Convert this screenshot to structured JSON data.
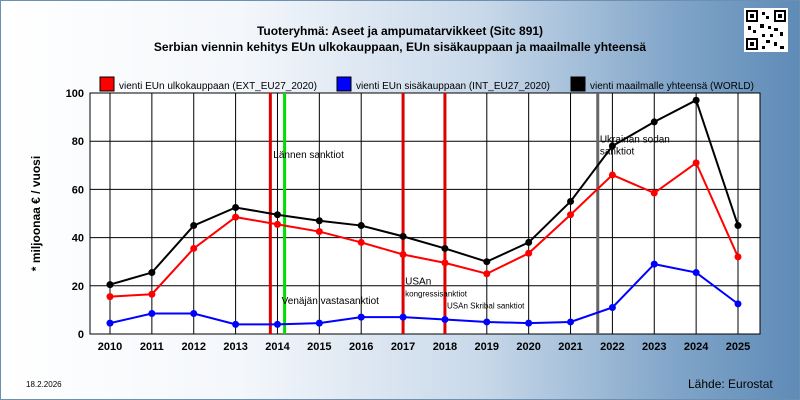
{
  "title": "Tuoteryhmä: Aseet ja ampumatarvikkeet (Sitc 891)",
  "subtitle": "Serbian viennin kehitys EUn ulkokauppaan, EUn sisäkauppaan ja maailmalle yhteensä",
  "date_stamp": "18.2.2026",
  "source": "Lähde: Eurostat",
  "colors": {
    "ext": "#ff0000",
    "int": "#0000ff",
    "world": "#000000",
    "plot_bg": "#ffffff"
  },
  "chart_data": {
    "type": "line",
    "title": "Tuoteryhmä: Aseet ja ampumatarvikkeet (Sitc 891)",
    "subtitle": "Serbian viennin kehitys EUn ulkokauppaan, EUn sisäkauppaan ja maailmalle yhteensä",
    "xlabel": "",
    "ylabel": "* miljoonaa € / vuosi",
    "x": [
      2010,
      2011,
      2012,
      2013,
      2014,
      2015,
      2016,
      2017,
      2018,
      2019,
      2020,
      2021,
      2022,
      2023,
      2024,
      2025
    ],
    "ylim": [
      0,
      100
    ],
    "yticks": [
      0,
      20,
      40,
      60,
      80,
      100
    ],
    "grid": true,
    "legend_position": "top",
    "series": [
      {
        "name": "vienti EUn ulkokauppaan (EXT_EU27_2020)",
        "color": "#ff0000",
        "values": [
          15.5,
          16.5,
          35.5,
          48.5,
          45.5,
          42.5,
          38,
          33,
          29.5,
          25,
          33.5,
          49.5,
          66,
          58.5,
          71,
          32
        ]
      },
      {
        "name": "vienti EUn sisäkauppaan (INT_EU27_2020)",
        "color": "#0000ff",
        "values": [
          4.5,
          8.5,
          8.5,
          4,
          4,
          4.5,
          7,
          7,
          6,
          5,
          4.5,
          5,
          11,
          29,
          25.5,
          12.5
        ]
      },
      {
        "name": "vienti maailmalle yhteensä (WORLD)",
        "color": "#000000",
        "values": [
          20.5,
          25.5,
          45,
          52.5,
          49.5,
          47,
          45,
          40.5,
          35.5,
          30,
          38,
          55,
          78,
          88,
          97,
          45
        ]
      }
    ],
    "events": [
      {
        "x": 2013.83,
        "color": "#dd0000",
        "label": ""
      },
      {
        "x": 2014.17,
        "color": "#00dd00",
        "label": ""
      },
      {
        "x": 2017.0,
        "color": "#dd0000",
        "label": ""
      },
      {
        "x": 2018.0,
        "color": "#dd0000",
        "label": ""
      },
      {
        "x": 2021.65,
        "color": "#666666",
        "label": ""
      }
    ],
    "annotations": [
      {
        "text": "Lännen sanktiot",
        "x": 2013.9,
        "y": 73
      },
      {
        "text": "Venäjän vastasanktiot",
        "x": 2014.1,
        "y": 12.5
      },
      {
        "text": "USAn",
        "x": 2017.05,
        "y": 20.5
      },
      {
        "text": "kongressisanktiot",
        "x": 2017.05,
        "y": 15.5
      },
      {
        "text": "USAn Skribal sanktiot",
        "x": 2018.05,
        "y": 10.5
      },
      {
        "text": "Ukrainan sodan",
        "x": 2021.7,
        "y": 79.5
      },
      {
        "text": "sanktiot",
        "x": 2021.7,
        "y": 74.5
      }
    ]
  }
}
